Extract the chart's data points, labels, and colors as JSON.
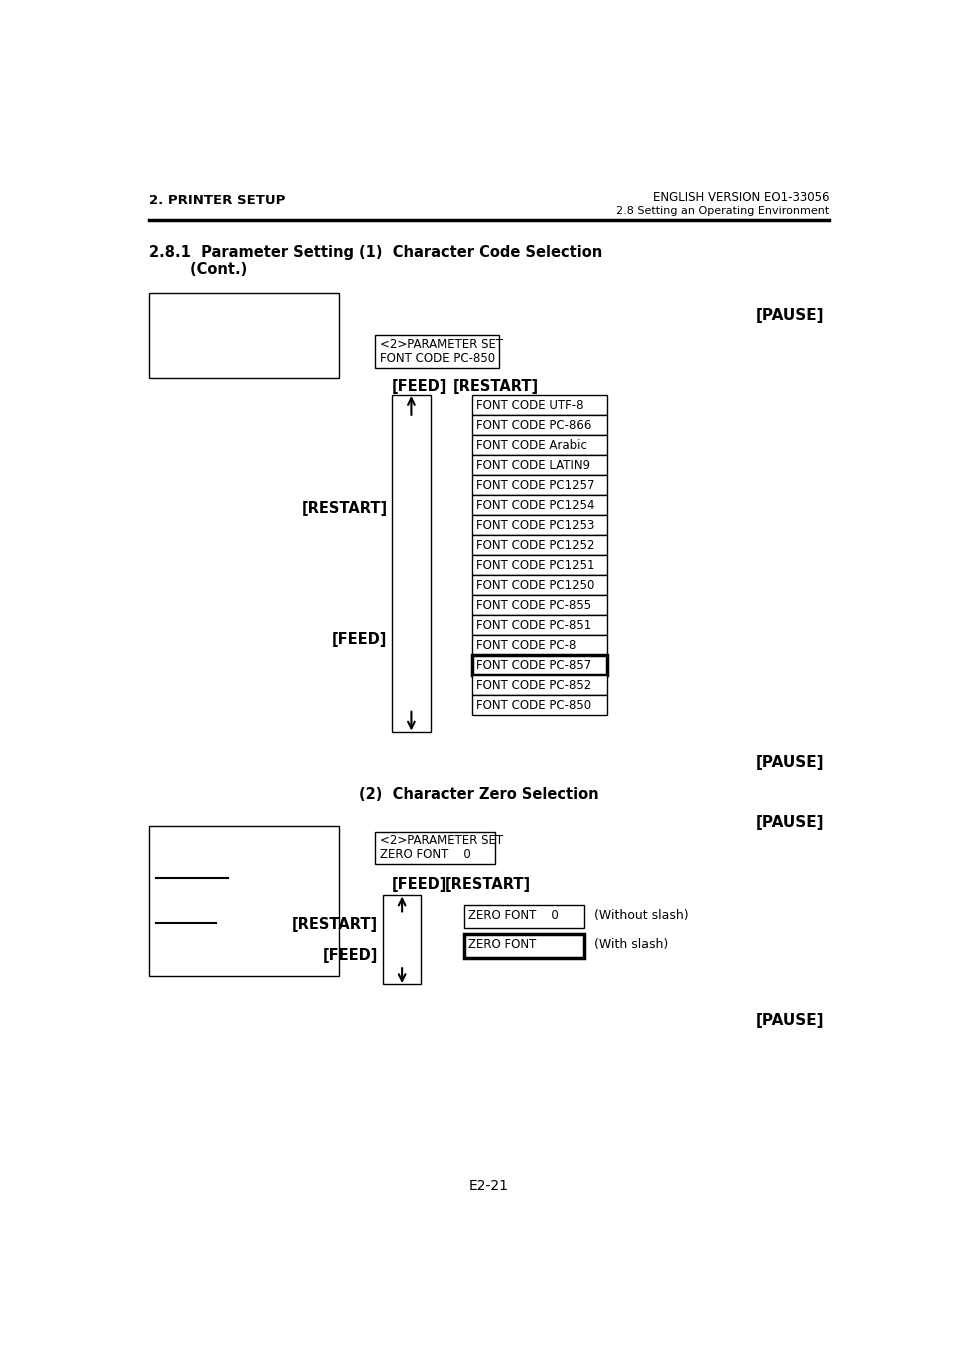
{
  "header_left": "2. PRINTER SETUP",
  "header_right": "ENGLISH VERSION EO1-33056",
  "subheader_right": "2.8 Setting an Operating Environment",
  "param_box1_lines": [
    "<2>PARAMETER SET",
    "FONT CODE PC-850"
  ],
  "param_box2_lines": [
    "<2>PARAMETER SET",
    "ZERO FONT    0"
  ],
  "font_codes": [
    "FONT CODE UTF-8",
    "FONT CODE PC-866",
    "FONT CODE Arabic",
    "FONT CODE LATIN9",
    "FONT CODE PC1257",
    "FONT CODE PC1254",
    "FONT CODE PC1253",
    "FONT CODE PC1252",
    "FONT CODE PC1251",
    "FONT CODE PC1250",
    "FONT CODE PC-855",
    "FONT CODE PC-851",
    "FONT CODE PC-8",
    "FONT CODE PC-857",
    "FONT CODE PC-852",
    "FONT CODE PC-850"
  ],
  "zero_font_items": [
    "ZERO FONT    0",
    "ZERO FONT"
  ],
  "zero_font_labels": [
    "(Without slash)",
    "(With slash)"
  ],
  "page_number": "E2-21",
  "bg_color": "#ffffff",
  "text_color": "#000000",
  "bold_border_idx": 14
}
